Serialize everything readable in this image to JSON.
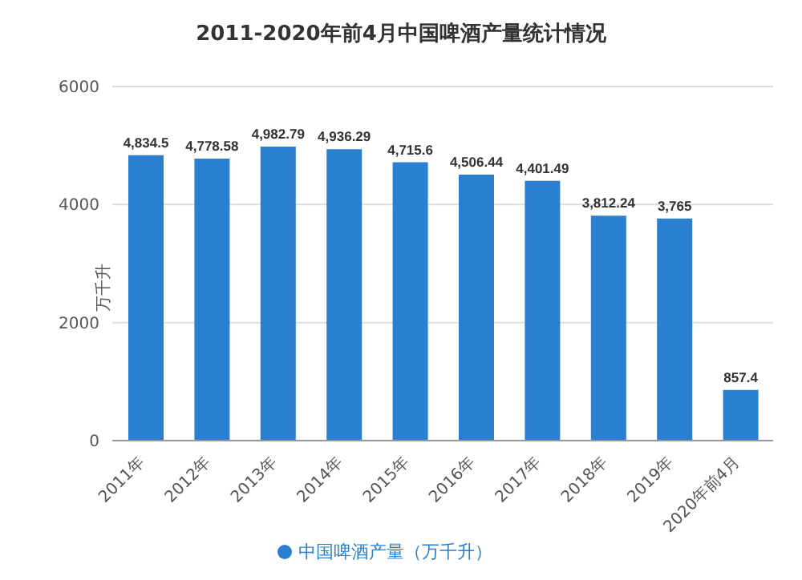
{
  "chart_data": {
    "type": "bar",
    "title": "2011-2020年前4月中国啤酒产量统计情况",
    "ylabel": "万千升",
    "categories": [
      "2011年",
      "2012年",
      "2013年",
      "2014年",
      "2015年",
      "2016年",
      "2017年",
      "2018年",
      "2019年",
      "2020年前4月"
    ],
    "series": [
      {
        "name": "中国啤酒产量（万千升）",
        "color": "#2b7fd0",
        "values": [
          4834.5,
          4778.58,
          4982.79,
          4936.29,
          4715.6,
          4506.44,
          4401.49,
          3812.24,
          3765,
          857.4
        ],
        "value_labels": [
          "4,834.5",
          "4,778.58",
          "4,982.79",
          "4,936.29",
          "4,715.6",
          "4,506.44",
          "4,401.49",
          "3,812.24",
          "3,765",
          "857.4"
        ]
      }
    ],
    "ylim": [
      0,
      6000
    ],
    "yticks": [
      0,
      2000,
      4000,
      6000
    ],
    "grid": "y",
    "legend": "bottom"
  }
}
